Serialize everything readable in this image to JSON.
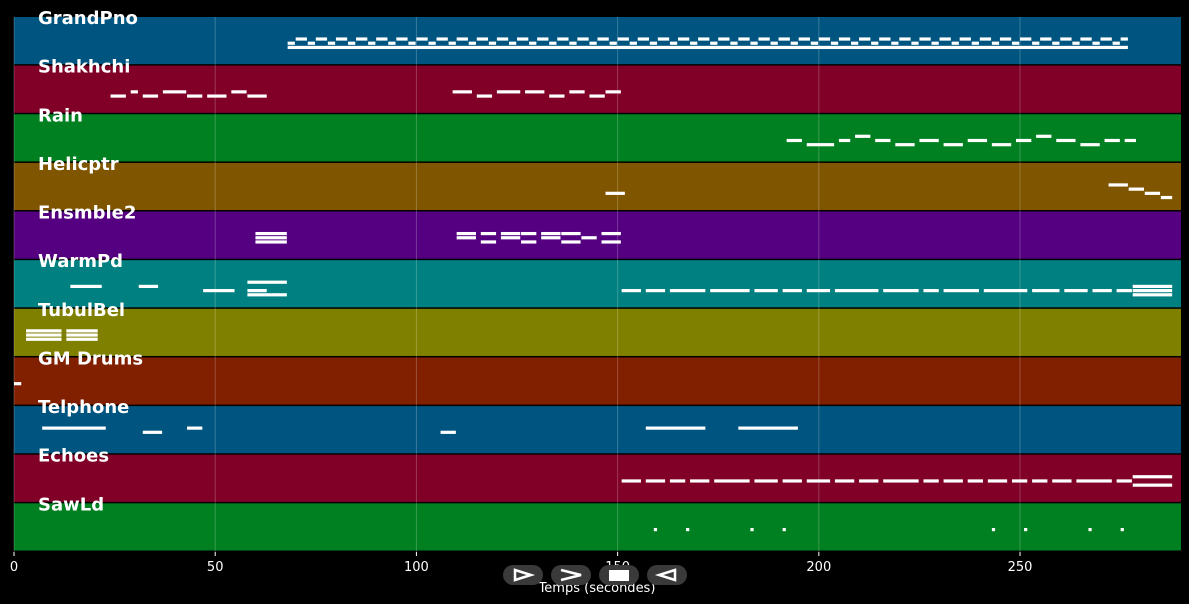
{
  "chart_data": {
    "type": "piano-roll",
    "xlabel": "Temps (secondes)",
    "xlim": [
      0,
      290
    ],
    "xticks": [
      0,
      50,
      100,
      150,
      200,
      250
    ],
    "grid": true,
    "tracks": [
      {
        "name": "GrandPno",
        "color": "#005580",
        "notes": [
          [
            68,
            70,
            1
          ],
          [
            70,
            73,
            0
          ],
          [
            73,
            75,
            1
          ],
          [
            75,
            78,
            0
          ],
          [
            78,
            80,
            1
          ],
          [
            80,
            83,
            0
          ],
          [
            83,
            85,
            1
          ],
          [
            85,
            88,
            0
          ],
          [
            88,
            90,
            1
          ],
          [
            90,
            93,
            0
          ],
          [
            93,
            95,
            1
          ],
          [
            95,
            98,
            0
          ],
          [
            98,
            100,
            1
          ],
          [
            100,
            103,
            0
          ],
          [
            103,
            105,
            1
          ],
          [
            105,
            108,
            0
          ],
          [
            108,
            110,
            1
          ],
          [
            110,
            113,
            0
          ],
          [
            113,
            115,
            1
          ],
          [
            115,
            118,
            0
          ],
          [
            118,
            120,
            1
          ],
          [
            120,
            123,
            0
          ],
          [
            123,
            125,
            1
          ],
          [
            125,
            128,
            0
          ],
          [
            128,
            130,
            1
          ],
          [
            130,
            133,
            0
          ],
          [
            133,
            135,
            1
          ],
          [
            135,
            138,
            0
          ],
          [
            138,
            140,
            1
          ],
          [
            140,
            143,
            0
          ],
          [
            143,
            145,
            1
          ],
          [
            145,
            148,
            0
          ],
          [
            148,
            150,
            1
          ],
          [
            150,
            153,
            0
          ],
          [
            153,
            155,
            1
          ],
          [
            155,
            158,
            0
          ],
          [
            158,
            160,
            1
          ],
          [
            160,
            163,
            0
          ],
          [
            163,
            165,
            1
          ],
          [
            165,
            168,
            0
          ],
          [
            168,
            170,
            1
          ],
          [
            170,
            173,
            0
          ],
          [
            173,
            175,
            1
          ],
          [
            175,
            178,
            0
          ],
          [
            178,
            180,
            1
          ],
          [
            180,
            183,
            0
          ],
          [
            183,
            185,
            1
          ],
          [
            185,
            188,
            0
          ],
          [
            188,
            190,
            1
          ],
          [
            190,
            193,
            0
          ],
          [
            193,
            195,
            1
          ],
          [
            195,
            198,
            0
          ],
          [
            198,
            200,
            1
          ],
          [
            200,
            203,
            0
          ],
          [
            203,
            205,
            1
          ],
          [
            205,
            208,
            0
          ],
          [
            208,
            210,
            1
          ],
          [
            210,
            213,
            0
          ],
          [
            213,
            215,
            1
          ],
          [
            215,
            218,
            0
          ],
          [
            218,
            220,
            1
          ],
          [
            220,
            223,
            0
          ],
          [
            223,
            225,
            1
          ],
          [
            225,
            228,
            0
          ],
          [
            228,
            230,
            1
          ],
          [
            230,
            233,
            0
          ],
          [
            233,
            235,
            1
          ],
          [
            235,
            238,
            0
          ],
          [
            238,
            240,
            1
          ],
          [
            240,
            243,
            0
          ],
          [
            243,
            245,
            1
          ],
          [
            245,
            248,
            0
          ],
          [
            248,
            250,
            1
          ],
          [
            250,
            253,
            0
          ],
          [
            253,
            255,
            1
          ],
          [
            255,
            258,
            0
          ],
          [
            258,
            260,
            1
          ],
          [
            260,
            263,
            0
          ],
          [
            263,
            265,
            1
          ],
          [
            265,
            268,
            0
          ],
          [
            268,
            270,
            1
          ],
          [
            270,
            273,
            0
          ],
          [
            273,
            275,
            1
          ],
          [
            275,
            277,
            0
          ],
          [
            68,
            277,
            2
          ]
        ]
      },
      {
        "name": "Shakhchi",
        "color": "#800028",
        "notes": [
          [
            24,
            28,
            2
          ],
          [
            29,
            31,
            1
          ],
          [
            32,
            36,
            2
          ],
          [
            37,
            43,
            1
          ],
          [
            43,
            47,
            2
          ],
          [
            48,
            53,
            2
          ],
          [
            54,
            58,
            1
          ],
          [
            58,
            63,
            2
          ],
          [
            109,
            114,
            1
          ],
          [
            115,
            119,
            2
          ],
          [
            120,
            126,
            1
          ],
          [
            127,
            132,
            1
          ],
          [
            133,
            137,
            2
          ],
          [
            138,
            142,
            1
          ],
          [
            143,
            147,
            2
          ],
          [
            147,
            151,
            1
          ]
        ]
      },
      {
        "name": "Rain",
        "color": "#008020",
        "notes": [
          [
            192,
            196,
            1
          ],
          [
            197,
            204,
            2
          ],
          [
            205,
            208,
            1
          ],
          [
            209,
            213,
            0
          ],
          [
            214,
            218,
            1
          ],
          [
            219,
            224,
            2
          ],
          [
            225,
            230,
            1
          ],
          [
            231,
            236,
            2
          ],
          [
            237,
            242,
            1
          ],
          [
            243,
            248,
            2
          ],
          [
            249,
            253,
            1
          ],
          [
            254,
            258,
            0
          ],
          [
            259,
            264,
            1
          ],
          [
            265,
            270,
            2
          ],
          [
            271,
            275,
            1
          ],
          [
            276,
            279,
            1
          ]
        ]
      },
      {
        "name": "Helicptr",
        "color": "#805500",
        "notes": [
          [
            147,
            152,
            2
          ],
          [
            272,
            277,
            0
          ],
          [
            277,
            281,
            1
          ],
          [
            281,
            285,
            2
          ],
          [
            285,
            288,
            3
          ]
        ]
      },
      {
        "name": "Ensmble2",
        "color": "#550080",
        "notes": [
          [
            60,
            68,
            0
          ],
          [
            60,
            68,
            1
          ],
          [
            60,
            68,
            2
          ],
          [
            110,
            115,
            0
          ],
          [
            110,
            115,
            1
          ],
          [
            116,
            120,
            0
          ],
          [
            116,
            120,
            2
          ],
          [
            121,
            126,
            0
          ],
          [
            121,
            126,
            1
          ],
          [
            126,
            130,
            0
          ],
          [
            126,
            130,
            2
          ],
          [
            131,
            136,
            0
          ],
          [
            131,
            136,
            1
          ],
          [
            136,
            141,
            0
          ],
          [
            136,
            141,
            2
          ],
          [
            141,
            145,
            1
          ],
          [
            146,
            151,
            0
          ],
          [
            146,
            151,
            2
          ]
        ]
      },
      {
        "name": "WarmPd",
        "color": "#008080",
        "notes": [
          [
            14,
            22,
            1
          ],
          [
            31,
            36,
            1
          ],
          [
            47,
            55,
            2
          ],
          [
            58,
            68,
            0
          ],
          [
            58,
            63,
            2
          ],
          [
            58,
            68,
            3
          ],
          [
            151,
            156,
            2
          ],
          [
            157,
            162,
            2
          ],
          [
            163,
            172,
            2
          ],
          [
            173,
            183,
            2
          ],
          [
            184,
            190,
            2
          ],
          [
            191,
            196,
            2
          ],
          [
            197,
            203,
            2
          ],
          [
            204,
            215,
            2
          ],
          [
            216,
            225,
            2
          ],
          [
            226,
            230,
            2
          ],
          [
            231,
            240,
            2
          ],
          [
            241,
            252,
            2
          ],
          [
            253,
            260,
            2
          ],
          [
            261,
            267,
            2
          ],
          [
            268,
            273,
            2
          ],
          [
            274,
            278,
            2
          ],
          [
            278,
            288,
            1
          ],
          [
            278,
            288,
            2
          ],
          [
            278,
            288,
            3
          ]
        ]
      },
      {
        "name": "TubulBel",
        "color": "#808000",
        "notes": [
          [
            3,
            12,
            0
          ],
          [
            3,
            12,
            1
          ],
          [
            3,
            12,
            2
          ],
          [
            13,
            21,
            0
          ],
          [
            13,
            21,
            1
          ],
          [
            13,
            21,
            2
          ]
        ]
      },
      {
        "name": "GM Drums",
        "color": "#802000",
        "notes": [
          [
            0,
            2,
            1
          ]
        ]
      },
      {
        "name": "Telphone",
        "color": "#005580",
        "notes": [
          [
            7,
            23,
            0
          ],
          [
            32,
            37,
            1
          ],
          [
            43,
            47,
            0
          ],
          [
            106,
            110,
            1
          ],
          [
            157,
            172,
            0
          ],
          [
            180,
            195,
            0
          ]
        ]
      },
      {
        "name": "Echoes",
        "color": "#800028",
        "notes": [
          [
            151,
            156,
            1
          ],
          [
            157,
            162,
            1
          ],
          [
            163,
            167,
            1
          ],
          [
            168,
            173,
            1
          ],
          [
            174,
            183,
            1
          ],
          [
            184,
            190,
            1
          ],
          [
            191,
            196,
            1
          ],
          [
            197,
            203,
            1
          ],
          [
            204,
            209,
            1
          ],
          [
            210,
            215,
            1
          ],
          [
            216,
            225,
            1
          ],
          [
            226,
            230,
            1
          ],
          [
            231,
            236,
            1
          ],
          [
            237,
            241,
            1
          ],
          [
            242,
            247,
            1
          ],
          [
            248,
            252,
            1
          ],
          [
            253,
            257,
            1
          ],
          [
            258,
            263,
            1
          ],
          [
            264,
            273,
            1
          ],
          [
            274,
            278,
            1
          ],
          [
            278,
            288,
            0
          ],
          [
            278,
            288,
            2
          ]
        ]
      },
      {
        "name": "SawLd",
        "color": "#008020",
        "notes": [
          [
            159,
            160,
            1
          ],
          [
            167,
            168,
            1
          ],
          [
            183,
            184,
            1
          ],
          [
            191,
            192,
            1
          ],
          [
            243,
            244,
            1
          ],
          [
            251,
            252,
            1
          ],
          [
            267,
            268,
            1
          ],
          [
            275,
            276,
            1
          ]
        ]
      }
    ]
  },
  "controls": {
    "play_icon": "play-outline-icon",
    "forward_icon": "chevron-right-icon",
    "stop_icon": "stop-square-icon",
    "rewind_icon": "rewind-outline-icon",
    "button_color": "#3a3a3a"
  }
}
